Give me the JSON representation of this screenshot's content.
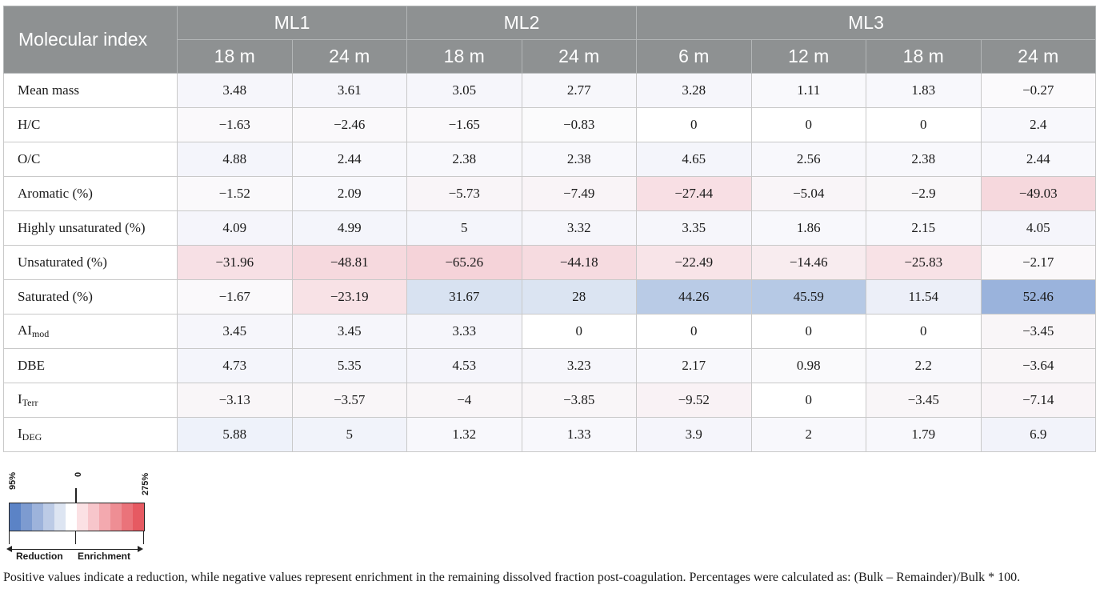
{
  "table": {
    "index_header": "Molecular index",
    "groups": [
      "ML1",
      "ML2",
      "ML3"
    ],
    "depths": [
      "18 m",
      "24 m",
      "18 m",
      "24 m",
      "6 m",
      "12 m",
      "18 m",
      "24 m"
    ],
    "rows": [
      {
        "label": "Mean mass",
        "sub": "",
        "values": [
          "3.48",
          "3.61",
          "3.05",
          "2.77",
          "3.28",
          "1.11",
          "1.83",
          "−0.27"
        ],
        "colors": [
          "#f6f6fb",
          "#f6f6fb",
          "#f6f6fb",
          "#f7f7fb",
          "#f6f6fb",
          "#f9f9fc",
          "#f8f8fc",
          "#fbfafc"
        ]
      },
      {
        "label": "H/C",
        "sub": "",
        "values": [
          "−1.63",
          "−2.46",
          "−1.65",
          "−0.83",
          "0",
          "0",
          "0",
          "2.4"
        ],
        "colors": [
          "#faf9fb",
          "#faf9fb",
          "#faf9fb",
          "#fbfbfc",
          "#ffffff",
          "#ffffff",
          "#ffffff",
          "#f8f8fc"
        ]
      },
      {
        "label": "O/C",
        "sub": "",
        "values": [
          "4.88",
          "2.44",
          "2.38",
          "2.38",
          "4.65",
          "2.56",
          "2.38",
          "2.44"
        ],
        "colors": [
          "#f4f5fb",
          "#f8f8fc",
          "#f8f8fc",
          "#f8f8fc",
          "#f4f5fb",
          "#f8f8fc",
          "#f8f8fc",
          "#f8f8fc"
        ]
      },
      {
        "label": "Aromatic (%)",
        "sub": "",
        "values": [
          "−1.52",
          "2.09",
          "−5.73",
          "−7.49",
          "−27.44",
          "−5.04",
          "−2.9",
          "−49.03"
        ],
        "colors": [
          "#faf9fb",
          "#f8f8fc",
          "#f9f5f8",
          "#f9f4f7",
          "#f8dfe4",
          "#f9f5f8",
          "#f9f7f9",
          "#f6d8dd"
        ]
      },
      {
        "label": "Highly unsaturated (%)",
        "sub": "",
        "values": [
          "4.09",
          "4.99",
          "5",
          "3.32",
          "3.35",
          "1.86",
          "2.15",
          "4.05"
        ],
        "colors": [
          "#f5f5fb",
          "#f4f5fb",
          "#f4f5fb",
          "#f6f6fb",
          "#f6f6fb",
          "#f8f8fc",
          "#f8f8fc",
          "#f5f5fb"
        ]
      },
      {
        "label": "Unsaturated (%)",
        "sub": "",
        "values": [
          "−31.96",
          "−48.81",
          "−65.26",
          "−44.18",
          "−22.49",
          "−14.46",
          "−25.83",
          "−2.17"
        ],
        "colors": [
          "#f7e0e5",
          "#f6d9de",
          "#f5d3d9",
          "#f6dbe0",
          "#f8e4e8",
          "#f8ecef",
          "#f8e2e6",
          "#faf8fa"
        ]
      },
      {
        "label": "Saturated (%)",
        "sub": "",
        "values": [
          "−1.67",
          "−23.19",
          "31.67",
          "28",
          "44.26",
          "45.59",
          "11.54",
          "52.46"
        ],
        "colors": [
          "#faf9fb",
          "#f8e2e6",
          "#d8e2f1",
          "#dbe4f2",
          "#b9cbe6",
          "#b6c9e5",
          "#eceff8",
          "#9ab3dc"
        ]
      },
      {
        "label": "AI",
        "sub": "mod",
        "values": [
          "3.45",
          "3.45",
          "3.33",
          "0",
          "0",
          "0",
          "0",
          "−3.45"
        ],
        "colors": [
          "#f6f6fb",
          "#f6f6fb",
          "#f6f6fb",
          "#ffffff",
          "#ffffff",
          "#ffffff",
          "#ffffff",
          "#f9f6f8"
        ]
      },
      {
        "label": "DBE",
        "sub": "",
        "values": [
          "4.73",
          "5.35",
          "4.53",
          "3.23",
          "2.17",
          "0.98",
          "2.2",
          "−3.64"
        ],
        "colors": [
          "#f4f5fb",
          "#f4f5fb",
          "#f5f5fb",
          "#f6f6fb",
          "#f8f8fc",
          "#fafafc",
          "#f8f8fc",
          "#f9f6f8"
        ]
      },
      {
        "label": "I",
        "sub": "Terr",
        "values": [
          "−3.13",
          "−3.57",
          "−4",
          "−3.85",
          "−9.52",
          "0",
          "−3.45",
          "−7.14"
        ],
        "colors": [
          "#f9f6f8",
          "#f9f6f8",
          "#f9f6f8",
          "#f9f6f8",
          "#f9f2f5",
          "#ffffff",
          "#f9f6f8",
          "#f9f4f7"
        ]
      },
      {
        "label": "I",
        "sub": "DEG",
        "values": [
          "5.88",
          "5",
          "1.32",
          "1.33",
          "3.9",
          "2",
          "1.79",
          "6.9"
        ],
        "colors": [
          "#eef2fa",
          "#f1f3fa",
          "#f8f8fc",
          "#f8f8fc",
          "#f5f5fb",
          "#f8f8fc",
          "#f8f8fc",
          "#f2f3fa"
        ]
      }
    ]
  },
  "legend": {
    "left_label": "95%",
    "center_label": "0",
    "right_label": "275%",
    "left_word": "Reduction",
    "right_word": "Enrichment",
    "colors": [
      "#5b83c6",
      "#7d9bd0",
      "#9db3db",
      "#bccbe6",
      "#dde5f2",
      "#ffffff",
      "#fbe1e4",
      "#f7c6cb",
      "#f3a9af",
      "#ee8e94",
      "#ea737a",
      "#e65a62"
    ]
  },
  "footnote": "Positive values indicate a reduction, while negative values represent enrichment in the remaining dissolved fraction post-coagulation. Percentages were calculated as: (Bulk – Remainder)/Bulk * 100."
}
